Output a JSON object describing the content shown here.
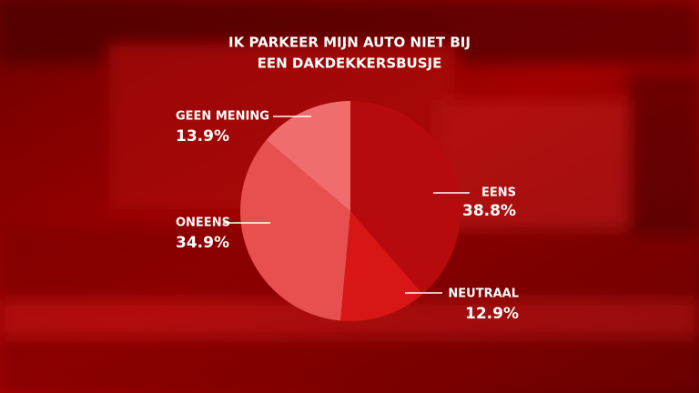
{
  "chart_data": {
    "type": "pie",
    "title": [
      "IK PARKEER MIJN AUTO NIET BIJ",
      "EEN DAKDEKKERSBUSJE"
    ],
    "categories": [
      "EENS",
      "NEUTRAAL",
      "ONEENS",
      "GEEN MENING"
    ],
    "values": [
      38.8,
      12.9,
      34.9,
      13.9
    ],
    "value_labels": [
      "38.8%",
      "12.9%",
      "34.9%",
      "13.9%"
    ],
    "colors": [
      "#b70a0c",
      "#d91616",
      "#e8504f",
      "#ef6d6c"
    ]
  }
}
